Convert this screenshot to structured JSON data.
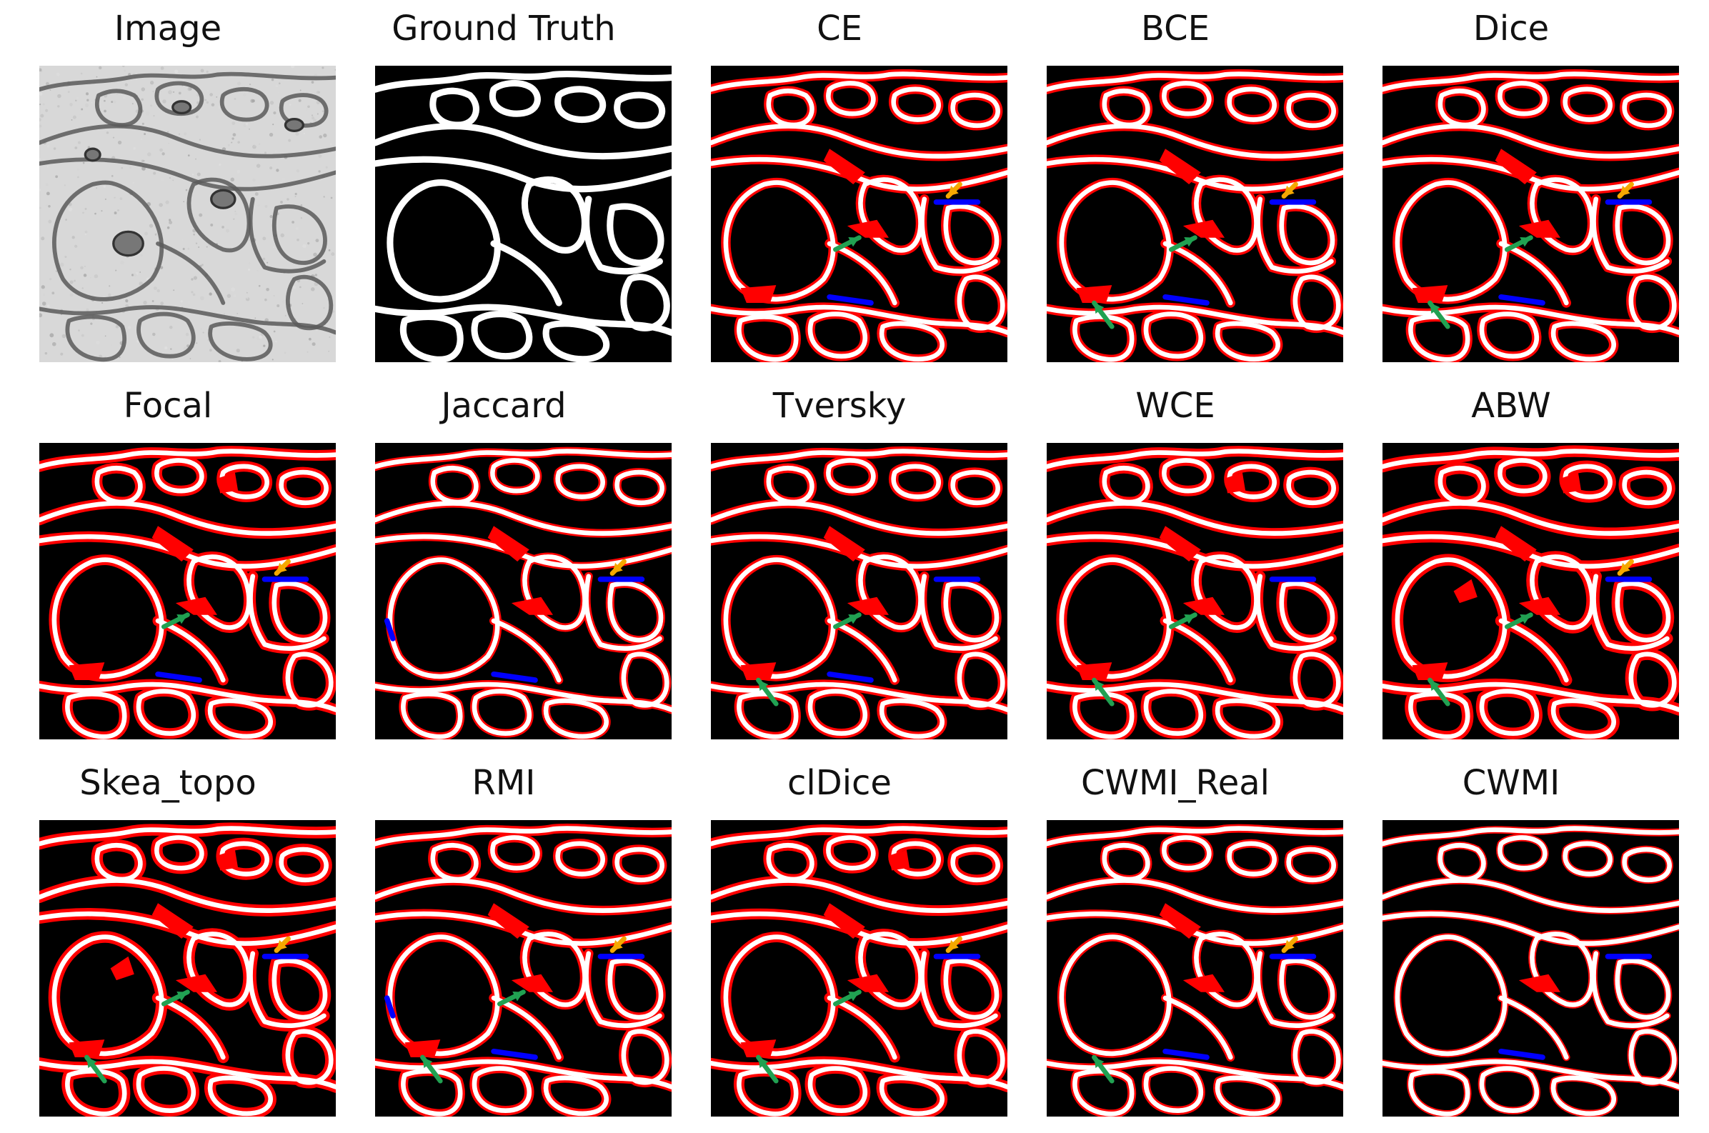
{
  "colors": {
    "background": "#000000",
    "ground_truth_boundary": "#ffffff",
    "false_positive": "#ff0000",
    "false_negative": "#0000ff",
    "green_arrow": "#21a152",
    "orange_arrow": "#f5a800"
  },
  "panels": [
    {
      "title": "Image",
      "kind": "em"
    },
    {
      "title": "Ground Truth",
      "kind": "gt"
    },
    {
      "title": "CE",
      "kind": "pred",
      "red": 3,
      "blue": 2,
      "green": [
        1
      ],
      "orange": true
    },
    {
      "title": "BCE",
      "kind": "pred",
      "red": 3,
      "blue": 2,
      "green": [
        1,
        2
      ],
      "orange": true
    },
    {
      "title": "Dice",
      "kind": "pred",
      "red": 3,
      "blue": 2,
      "green": [
        1,
        2
      ],
      "orange": true
    },
    {
      "title": "Focal",
      "kind": "pred",
      "red": 4,
      "blue": 2,
      "green": [
        1
      ],
      "orange": true
    },
    {
      "title": "Jaccard",
      "kind": "pred",
      "red": 2,
      "blue": 3,
      "green": [],
      "orange": true
    },
    {
      "title": "Tversky",
      "kind": "pred",
      "red": 3,
      "blue": 2,
      "green": [
        1,
        2
      ],
      "orange": false
    },
    {
      "title": "WCE",
      "kind": "pred",
      "red": 4,
      "blue": 1,
      "green": [
        1,
        2
      ],
      "orange": false
    },
    {
      "title": "ABW",
      "kind": "pred",
      "red": 5,
      "blue": 1,
      "green": [
        1,
        2
      ],
      "orange": true
    },
    {
      "title": "Skea_topo",
      "kind": "pred",
      "red": 5,
      "blue": 1,
      "green": [
        1,
        2
      ],
      "orange": true
    },
    {
      "title": "RMI",
      "kind": "pred",
      "red": 3,
      "blue": 3,
      "green": [
        1,
        2
      ],
      "orange": true
    },
    {
      "title": "clDice",
      "kind": "pred",
      "red": 4,
      "blue": 1,
      "green": [
        1,
        2
      ],
      "orange": true
    },
    {
      "title": "CWMI_Real",
      "kind": "pred",
      "red": 2,
      "blue": 2,
      "green": [
        2
      ],
      "orange": true
    },
    {
      "title": "CWMI",
      "kind": "pred",
      "red": 1,
      "blue": 2,
      "green": [],
      "orange": false
    }
  ]
}
